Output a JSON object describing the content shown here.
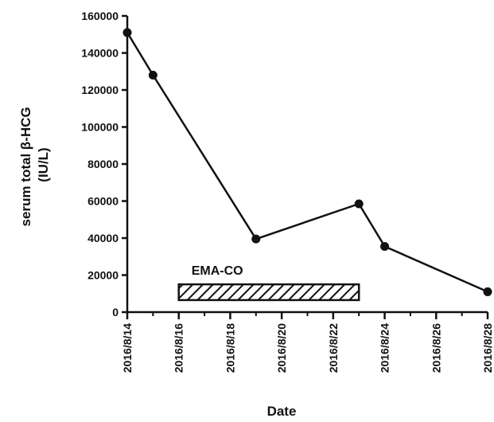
{
  "chart_data": {
    "type": "line",
    "xlabel": "Date",
    "ylabel_line1": "serum total β-HCG",
    "ylabel_line2": "(IU/L)",
    "ylim": [
      0,
      160000
    ],
    "yticks": [
      "0",
      "20000",
      "40000",
      "60000",
      "80000",
      "100000",
      "120000",
      "140000",
      "160000"
    ],
    "ytick_values": [
      0,
      20000,
      40000,
      60000,
      80000,
      100000,
      120000,
      140000,
      160000
    ],
    "x_range": [
      "2016-08-14",
      "2016-08-28"
    ],
    "xticks": [
      "2016/8/14",
      "2016/8/16",
      "2016/8/18",
      "2016/8/20",
      "2016/8/22",
      "2016/8/24",
      "2016/8/26",
      "2016/8/28"
    ],
    "xtick_dates": [
      "2016-08-14",
      "2016-08-16",
      "2016-08-18",
      "2016-08-20",
      "2016-08-22",
      "2016-08-24",
      "2016-08-26",
      "2016-08-28"
    ],
    "series": [
      {
        "x": [
          "2016-08-14",
          "2016-08-15",
          "2016-08-19",
          "2016-08-23",
          "2016-08-24",
          "2016-08-28"
        ],
        "y": [
          151000,
          128000,
          39500,
          58500,
          35500,
          11000
        ]
      }
    ],
    "annotation": {
      "label": "EMA-CO",
      "start": "2016-08-16",
      "end": "2016-08-23",
      "y_range": [
        6500,
        15000
      ]
    },
    "grid": false,
    "legend": "none"
  }
}
